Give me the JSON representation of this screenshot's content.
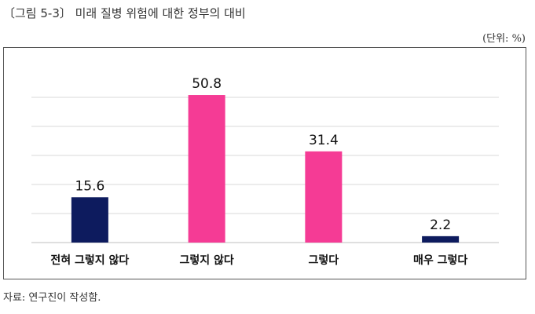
{
  "header": {
    "title": "〔그림 5-3〕 미래 질병 위험에 대한 정부의 대비",
    "unit": "(단위: %)"
  },
  "footer": {
    "source": "자료: 연구진이 작성함."
  },
  "colors": {
    "navy": "#0d1b5e",
    "pink": "#f53b95",
    "grid": "#d9d9d9",
    "axis": "#bfbfbf"
  },
  "chart_data": {
    "type": "bar",
    "categories": [
      "전혀 그렇지 않다",
      "그렇지 않다",
      "그렇다",
      "매우 그렇다"
    ],
    "values": [
      15.6,
      50.8,
      31.4,
      2.2
    ],
    "value_labels": [
      "15.6",
      "50.8",
      "31.4",
      "2.2"
    ],
    "bar_colors": [
      "#0d1b5e",
      "#f53b95",
      "#f53b95",
      "#0d1b5e"
    ],
    "title": "",
    "xlabel": "",
    "ylabel": "",
    "ylim": [
      0,
      60
    ],
    "gridlines": [
      0,
      10,
      20,
      30,
      40,
      50
    ],
    "grid": true,
    "legend": "none"
  }
}
